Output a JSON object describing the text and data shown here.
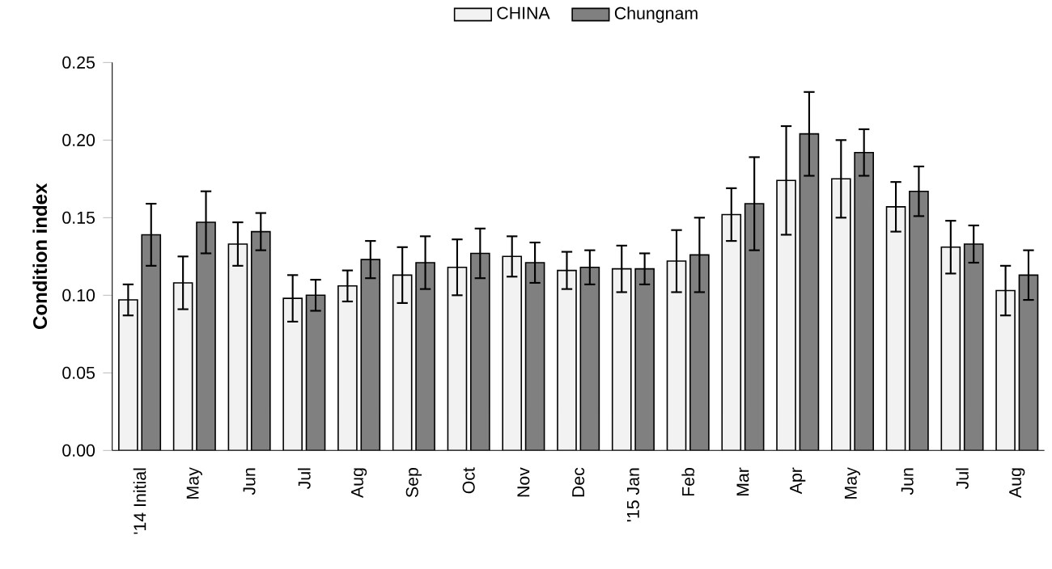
{
  "chart_data": {
    "type": "bar",
    "ylabel": "**Condition index**",
    "categories": [
      "'14 Initial",
      "May",
      "Jun",
      "Jul",
      "Aug",
      "Sep",
      "Oct",
      "Nov",
      "Dec",
      "'15 Jan",
      "Feb",
      "Mar",
      "Apr",
      "May",
      "Jun",
      "Jul",
      "Aug"
    ],
    "series": [
      {
        "name": "CHINA",
        "color": "#f2f2f2",
        "values": [
          0.097,
          0.108,
          0.133,
          0.098,
          0.106,
          0.113,
          0.118,
          0.125,
          0.116,
          0.117,
          0.122,
          0.152,
          0.174,
          0.175,
          0.157,
          0.131,
          0.103
        ],
        "errors": [
          0.01,
          0.017,
          0.014,
          0.015,
          0.01,
          0.018,
          0.018,
          0.013,
          0.012,
          0.015,
          0.02,
          0.017,
          0.035,
          0.025,
          0.016,
          0.017,
          0.016
        ]
      },
      {
        "name": "Chungnam",
        "color": "#808080",
        "values": [
          0.139,
          0.147,
          0.141,
          0.1,
          0.123,
          0.121,
          0.127,
          0.121,
          0.118,
          0.117,
          0.126,
          0.159,
          0.204,
          0.192,
          0.167,
          0.133,
          0.113
        ],
        "errors": [
          0.02,
          0.02,
          0.012,
          0.01,
          0.012,
          0.017,
          0.016,
          0.013,
          0.011,
          0.01,
          0.024,
          0.03,
          0.027,
          0.015,
          0.016,
          0.012,
          0.016
        ]
      }
    ],
    "ylim": [
      0,
      0.25
    ],
    "yticks": [
      {
        "value": 0,
        "label": "0.00"
      },
      {
        "value": 0.05,
        "label": "0.05"
      },
      {
        "value": 0.1,
        "label": "0.10"
      },
      {
        "value": 0.15,
        "label": "0.15"
      },
      {
        "value": 0.2,
        "label": "0.20"
      },
      {
        "value": 0.25,
        "label": "0.25"
      }
    ],
    "legend": "top",
    "grid": false
  }
}
